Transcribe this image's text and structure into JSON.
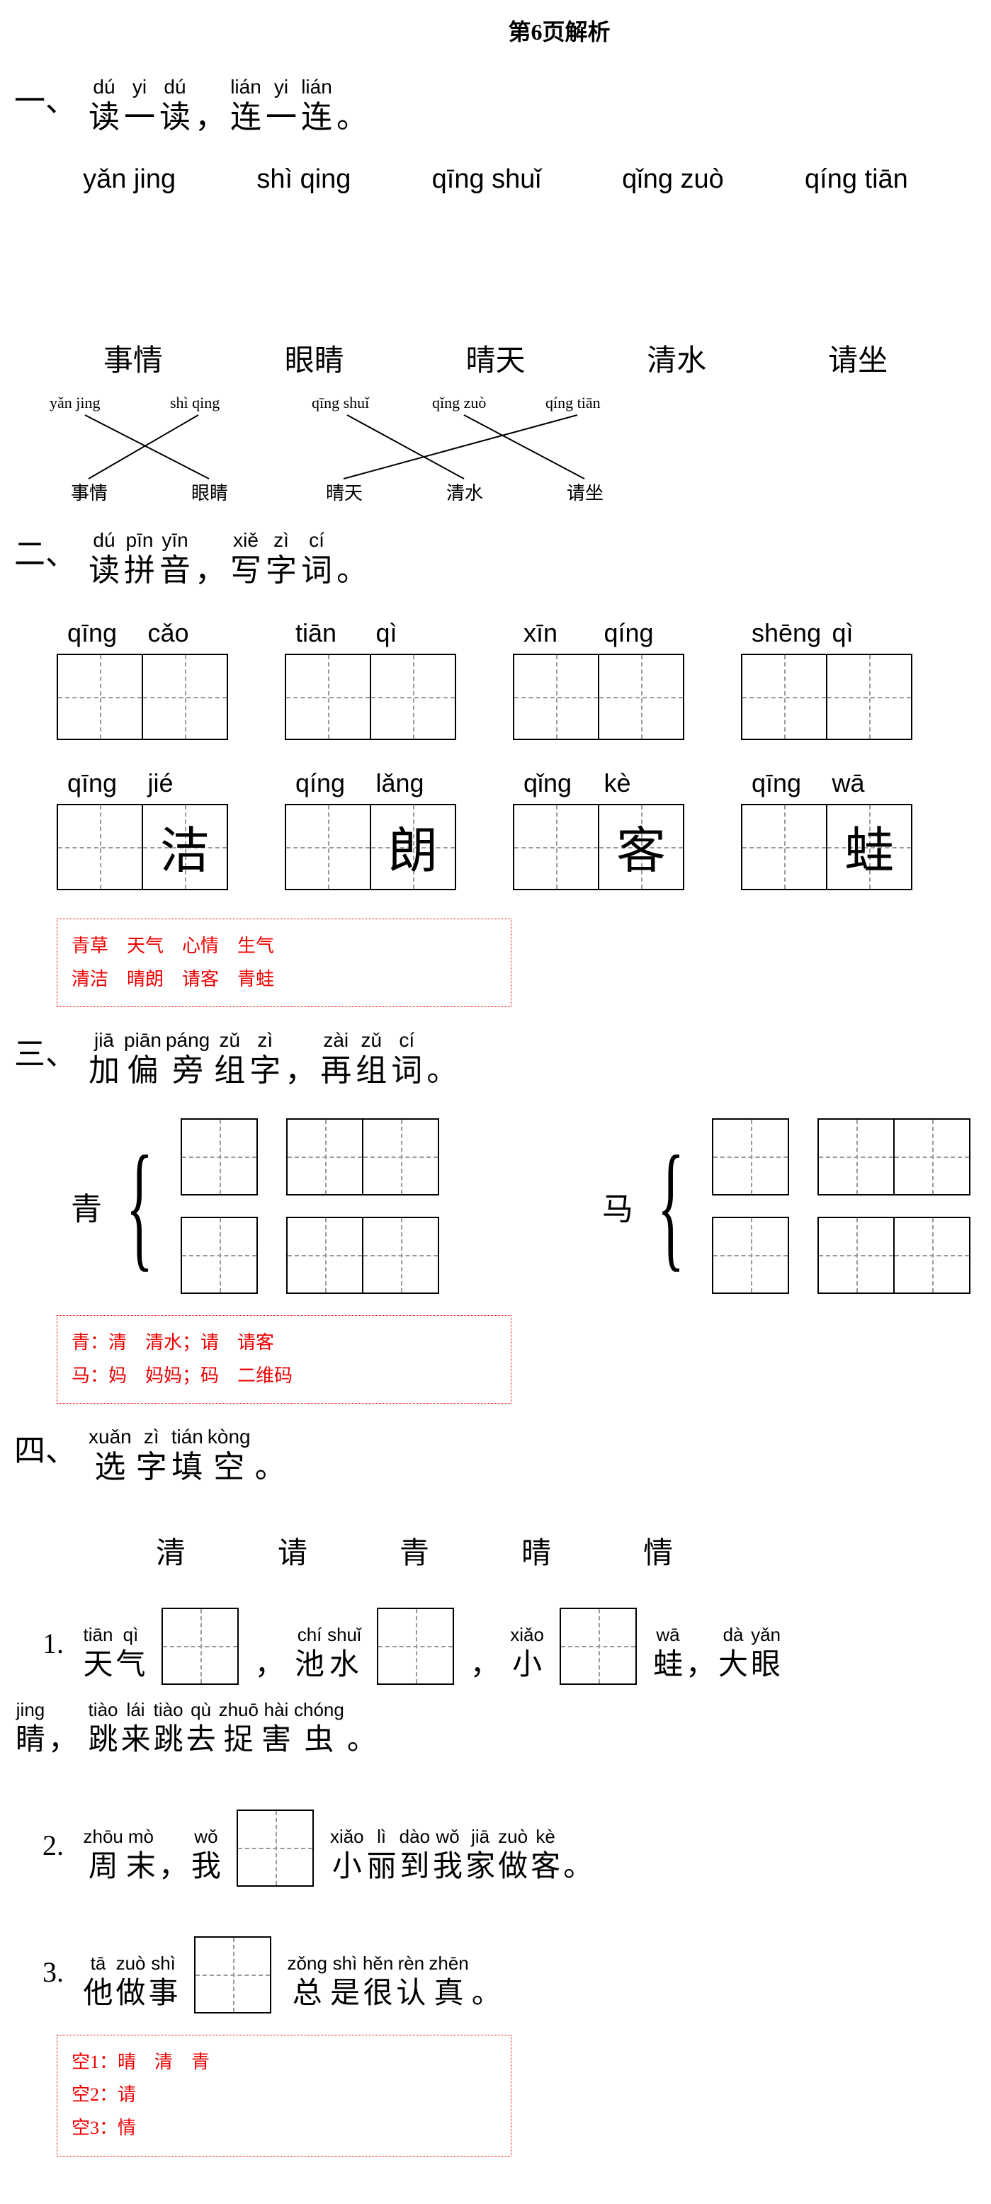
{
  "header": "第6页解析",
  "sec1": {
    "num": "一、",
    "title_chars": [
      {
        "p": "dú",
        "c": "读"
      },
      {
        "p": "yi",
        "c": "一"
      },
      {
        "p": "dú",
        "c": "读"
      },
      {
        "p": "",
        "c": "，"
      },
      {
        "p": "lián",
        "c": "连"
      },
      {
        "p": "yi",
        "c": "一"
      },
      {
        "p": "lián",
        "c": "连"
      },
      {
        "p": "",
        "c": "。"
      }
    ],
    "top": [
      "yǎn jing",
      "shì qing",
      "qīng shuǐ",
      "qǐng zuò",
      "qíng tiān"
    ],
    "bot": [
      "事情",
      "眼睛",
      "晴天",
      "清水",
      "请坐"
    ],
    "diagram": {
      "g1": [
        "yǎn jing",
        "shì qing"
      ],
      "g1b": [
        "事情",
        "眼睛"
      ],
      "g2": [
        "qīng shuǐ",
        "qǐng zuò",
        "qíng tiān"
      ],
      "g2b": [
        "晴天",
        "清水",
        "请坐"
      ]
    }
  },
  "sec2": {
    "num": "二、",
    "title_chars": [
      {
        "p": "dú",
        "c": "读"
      },
      {
        "p": "pīn",
        "c": "拼"
      },
      {
        "p": "yīn",
        "c": "音"
      },
      {
        "p": "",
        "c": "，"
      },
      {
        "p": "xiě",
        "c": "写"
      },
      {
        "p": "zì",
        "c": "字"
      },
      {
        "p": "cí",
        "c": "词"
      },
      {
        "p": "",
        "c": "。"
      }
    ],
    "row1": [
      {
        "p1": "qīng",
        "p2": "cǎo",
        "c1": "",
        "c2": ""
      },
      {
        "p1": "tiān",
        "p2": "qì",
        "c1": "",
        "c2": ""
      },
      {
        "p1": "xīn",
        "p2": "qíng",
        "c1": "",
        "c2": ""
      },
      {
        "p1": "shēng",
        "p2": "qì",
        "c1": "",
        "c2": ""
      }
    ],
    "row2": [
      {
        "p1": "qīng",
        "p2": "jié",
        "c1": "",
        "c2": "洁"
      },
      {
        "p1": "qíng",
        "p2": "lǎng",
        "c1": "",
        "c2": "朗"
      },
      {
        "p1": "qǐng",
        "p2": "kè",
        "c1": "",
        "c2": "客"
      },
      {
        "p1": "qīng",
        "p2": "wā",
        "c1": "",
        "c2": "蛙"
      }
    ],
    "ans1": "青草 天气 心情 生气",
    "ans2": "清洁 晴朗 请客 青蛙"
  },
  "sec3": {
    "num": "三、",
    "title_chars": [
      {
        "p": "jiā",
        "c": "加"
      },
      {
        "p": "piān",
        "c": "偏"
      },
      {
        "p": "páng",
        "c": "旁"
      },
      {
        "p": "zǔ",
        "c": "组"
      },
      {
        "p": "zì",
        "c": "字"
      },
      {
        "p": "",
        "c": "，"
      },
      {
        "p": "zài",
        "c": "再"
      },
      {
        "p": "zǔ",
        "c": "组"
      },
      {
        "p": "cí",
        "c": "词"
      },
      {
        "p": "",
        "c": "。"
      }
    ],
    "g1": "青",
    "g2": "马",
    "ans1": "青：清 清水；请 请客",
    "ans2": "马：妈 妈妈；码 二维码"
  },
  "sec4": {
    "num": "四、",
    "title_chars": [
      {
        "p": "xuǎn",
        "c": "选"
      },
      {
        "p": "zì",
        "c": "字"
      },
      {
        "p": "tián",
        "c": "填"
      },
      {
        "p": "kòng",
        "c": "空"
      },
      {
        "p": "",
        "c": "。"
      }
    ],
    "choices": [
      "清",
      "请",
      "青",
      "晴",
      "情"
    ],
    "s1": {
      "num": "1.",
      "w1": [
        {
          "p": "tiān",
          "c": "天"
        },
        {
          "p": "qì",
          "c": "气"
        }
      ],
      "w2": [
        {
          "p": "chí",
          "c": "池"
        },
        {
          "p": "shuǐ",
          "c": "水"
        }
      ],
      "w3": [
        {
          "p": "xiǎo",
          "c": "小"
        }
      ],
      "w4": [
        {
          "p": "wā",
          "c": "蛙"
        },
        {
          "p": "",
          "c": "，"
        },
        {
          "p": "dà",
          "c": "大"
        },
        {
          "p": "yǎn",
          "c": "眼"
        }
      ],
      "cont_pre": [
        {
          "p": "jing",
          "c": "睛"
        },
        {
          "p": "",
          "c": "，"
        }
      ],
      "cont": [
        {
          "p": "tiào",
          "c": "跳"
        },
        {
          "p": "lái",
          "c": "来"
        },
        {
          "p": "tiào",
          "c": "跳"
        },
        {
          "p": "qù",
          "c": "去"
        },
        {
          "p": "zhuō",
          "c": "捉"
        },
        {
          "p": "hài",
          "c": "害"
        },
        {
          "p": "chóng",
          "c": "虫"
        },
        {
          "p": "",
          "c": "。"
        }
      ]
    },
    "s2": {
      "num": "2.",
      "w1": [
        {
          "p": "zhōu",
          "c": "周"
        },
        {
          "p": "mò",
          "c": "末"
        },
        {
          "p": "",
          "c": "，"
        },
        {
          "p": "wǒ",
          "c": "我"
        }
      ],
      "w2": [
        {
          "p": "xiǎo",
          "c": "小"
        },
        {
          "p": "lì",
          "c": "丽"
        },
        {
          "p": "dào",
          "c": "到"
        },
        {
          "p": "wǒ",
          "c": "我"
        },
        {
          "p": "jiā",
          "c": "家"
        },
        {
          "p": "zuò",
          "c": "做"
        },
        {
          "p": "kè",
          "c": "客"
        },
        {
          "p": "",
          "c": "。"
        }
      ]
    },
    "s3": {
      "num": "3.",
      "w1": [
        {
          "p": "tā",
          "c": "他"
        },
        {
          "p": "zuò",
          "c": "做"
        },
        {
          "p": "shì",
          "c": "事"
        }
      ],
      "w2": [
        {
          "p": "zǒng",
          "c": "总"
        },
        {
          "p": "shì",
          "c": "是"
        },
        {
          "p": "hěn",
          "c": "很"
        },
        {
          "p": "rèn",
          "c": "认"
        },
        {
          "p": "zhēn",
          "c": "真"
        },
        {
          "p": "",
          "c": "。"
        }
      ]
    },
    "ans1": "空1：晴 清 青",
    "ans2": "空2：请",
    "ans3": "空3：情"
  }
}
